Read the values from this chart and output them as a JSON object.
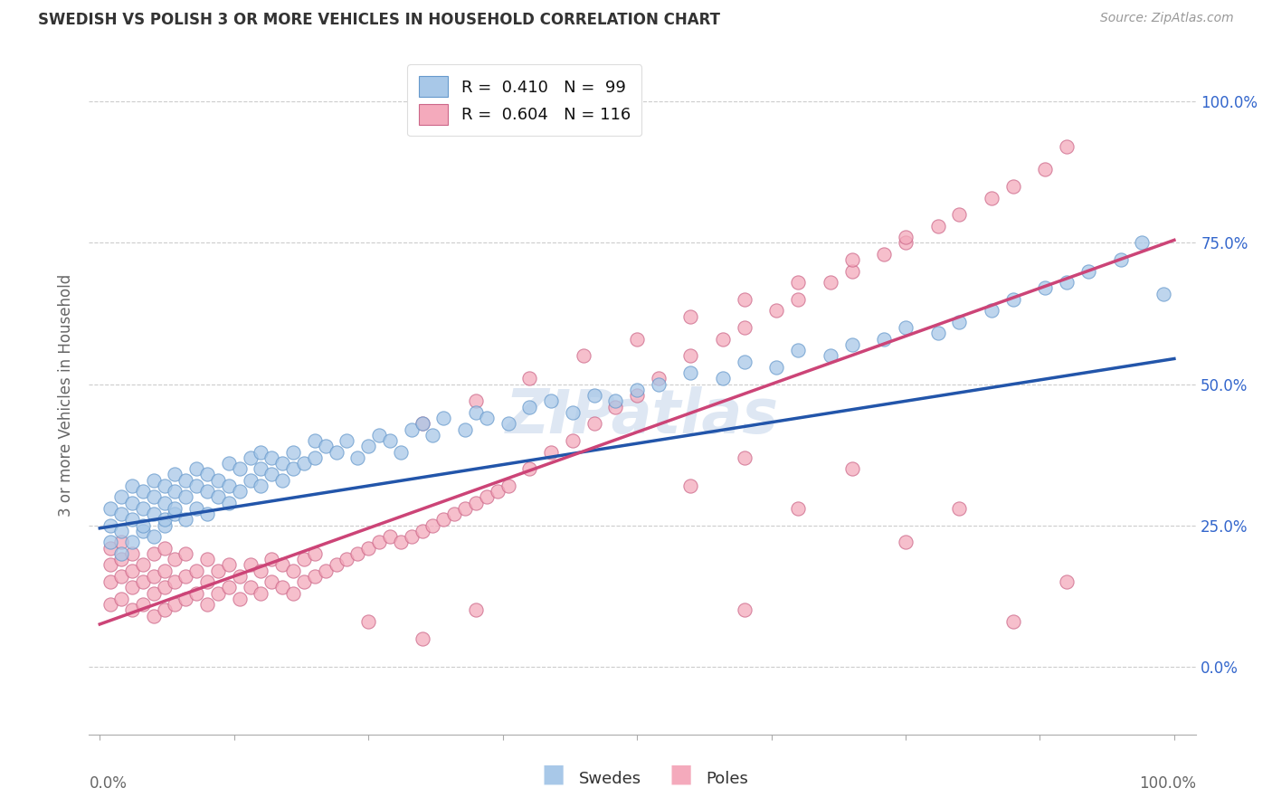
{
  "title": "SWEDISH VS POLISH 3 OR MORE VEHICLES IN HOUSEHOLD CORRELATION CHART",
  "source": "Source: ZipAtlas.com",
  "ylabel": "3 or more Vehicles in Household",
  "ytick_labels": [
    "0.0%",
    "25.0%",
    "50.0%",
    "75.0%",
    "100.0%"
  ],
  "ytick_values": [
    0.0,
    0.25,
    0.5,
    0.75,
    1.0
  ],
  "xtick_labels": [
    "0.0%",
    "100.0%"
  ],
  "xtick_values": [
    0.0,
    1.0
  ],
  "xlim": [
    -0.01,
    1.02
  ],
  "ylim": [
    -0.12,
    1.08
  ],
  "swedes_color": "#a8c8e8",
  "poles_color": "#f4aabc",
  "swedes_edge": "#6699cc",
  "poles_edge": "#cc6688",
  "trend_blue": "#2255aa",
  "trend_pink": "#cc4477",
  "R_swedes": 0.41,
  "N_swedes": 99,
  "R_poles": 0.604,
  "N_poles": 116,
  "watermark": "ZIPatlas",
  "legend_swedes": "Swedes",
  "legend_poles": "Poles",
  "blue_trend_x0": 0.0,
  "blue_trend_y0": 0.245,
  "blue_trend_x1": 1.0,
  "blue_trend_y1": 0.545,
  "pink_trend_x0": 0.0,
  "pink_trend_y0": 0.075,
  "pink_trend_x1": 1.0,
  "pink_trend_y1": 0.755,
  "swedes_x": [
    0.01,
    0.01,
    0.01,
    0.02,
    0.02,
    0.02,
    0.02,
    0.03,
    0.03,
    0.03,
    0.03,
    0.04,
    0.04,
    0.04,
    0.04,
    0.05,
    0.05,
    0.05,
    0.05,
    0.06,
    0.06,
    0.06,
    0.06,
    0.07,
    0.07,
    0.07,
    0.07,
    0.08,
    0.08,
    0.08,
    0.09,
    0.09,
    0.09,
    0.1,
    0.1,
    0.1,
    0.11,
    0.11,
    0.12,
    0.12,
    0.12,
    0.13,
    0.13,
    0.14,
    0.14,
    0.15,
    0.15,
    0.15,
    0.16,
    0.16,
    0.17,
    0.17,
    0.18,
    0.18,
    0.19,
    0.2,
    0.2,
    0.21,
    0.22,
    0.23,
    0.24,
    0.25,
    0.26,
    0.27,
    0.28,
    0.29,
    0.3,
    0.31,
    0.32,
    0.34,
    0.35,
    0.36,
    0.38,
    0.4,
    0.42,
    0.44,
    0.46,
    0.48,
    0.5,
    0.52,
    0.55,
    0.58,
    0.6,
    0.63,
    0.65,
    0.68,
    0.7,
    0.73,
    0.75,
    0.78,
    0.8,
    0.83,
    0.85,
    0.88,
    0.9,
    0.92,
    0.95,
    0.97,
    0.99
  ],
  "swedes_y": [
    0.22,
    0.25,
    0.28,
    0.2,
    0.24,
    0.27,
    0.3,
    0.22,
    0.26,
    0.29,
    0.32,
    0.24,
    0.28,
    0.31,
    0.25,
    0.23,
    0.27,
    0.3,
    0.33,
    0.25,
    0.29,
    0.32,
    0.26,
    0.27,
    0.31,
    0.34,
    0.28,
    0.26,
    0.3,
    0.33,
    0.28,
    0.32,
    0.35,
    0.27,
    0.31,
    0.34,
    0.3,
    0.33,
    0.29,
    0.32,
    0.36,
    0.31,
    0.35,
    0.33,
    0.37,
    0.32,
    0.35,
    0.38,
    0.34,
    0.37,
    0.33,
    0.36,
    0.35,
    0.38,
    0.36,
    0.37,
    0.4,
    0.39,
    0.38,
    0.4,
    0.37,
    0.39,
    0.41,
    0.4,
    0.38,
    0.42,
    0.43,
    0.41,
    0.44,
    0.42,
    0.45,
    0.44,
    0.43,
    0.46,
    0.47,
    0.45,
    0.48,
    0.47,
    0.49,
    0.5,
    0.52,
    0.51,
    0.54,
    0.53,
    0.56,
    0.55,
    0.57,
    0.58,
    0.6,
    0.59,
    0.61,
    0.63,
    0.65,
    0.67,
    0.68,
    0.7,
    0.72,
    0.75,
    0.66
  ],
  "poles_x": [
    0.01,
    0.01,
    0.01,
    0.01,
    0.02,
    0.02,
    0.02,
    0.02,
    0.03,
    0.03,
    0.03,
    0.03,
    0.04,
    0.04,
    0.04,
    0.05,
    0.05,
    0.05,
    0.05,
    0.06,
    0.06,
    0.06,
    0.06,
    0.07,
    0.07,
    0.07,
    0.08,
    0.08,
    0.08,
    0.09,
    0.09,
    0.1,
    0.1,
    0.1,
    0.11,
    0.11,
    0.12,
    0.12,
    0.13,
    0.13,
    0.14,
    0.14,
    0.15,
    0.15,
    0.16,
    0.16,
    0.17,
    0.17,
    0.18,
    0.18,
    0.19,
    0.19,
    0.2,
    0.2,
    0.21,
    0.22,
    0.23,
    0.24,
    0.25,
    0.26,
    0.27,
    0.28,
    0.29,
    0.3,
    0.31,
    0.32,
    0.33,
    0.34,
    0.35,
    0.36,
    0.37,
    0.38,
    0.4,
    0.42,
    0.44,
    0.46,
    0.48,
    0.5,
    0.52,
    0.55,
    0.58,
    0.6,
    0.63,
    0.65,
    0.68,
    0.7,
    0.73,
    0.75,
    0.78,
    0.8,
    0.83,
    0.85,
    0.88,
    0.9,
    0.3,
    0.35,
    0.4,
    0.45,
    0.5,
    0.55,
    0.6,
    0.65,
    0.7,
    0.75,
    0.55,
    0.6,
    0.65,
    0.7,
    0.75,
    0.8,
    0.85,
    0.9,
    0.25,
    0.3,
    0.35,
    0.6
  ],
  "poles_y": [
    0.15,
    0.18,
    0.21,
    0.11,
    0.12,
    0.16,
    0.19,
    0.22,
    0.1,
    0.14,
    0.17,
    0.2,
    0.11,
    0.15,
    0.18,
    0.09,
    0.13,
    0.16,
    0.2,
    0.1,
    0.14,
    0.17,
    0.21,
    0.11,
    0.15,
    0.19,
    0.12,
    0.16,
    0.2,
    0.13,
    0.17,
    0.11,
    0.15,
    0.19,
    0.13,
    0.17,
    0.14,
    0.18,
    0.12,
    0.16,
    0.14,
    0.18,
    0.13,
    0.17,
    0.15,
    0.19,
    0.14,
    0.18,
    0.13,
    0.17,
    0.15,
    0.19,
    0.16,
    0.2,
    0.17,
    0.18,
    0.19,
    0.2,
    0.21,
    0.22,
    0.23,
    0.22,
    0.23,
    0.24,
    0.25,
    0.26,
    0.27,
    0.28,
    0.29,
    0.3,
    0.31,
    0.32,
    0.35,
    0.38,
    0.4,
    0.43,
    0.46,
    0.48,
    0.51,
    0.55,
    0.58,
    0.6,
    0.63,
    0.65,
    0.68,
    0.7,
    0.73,
    0.75,
    0.78,
    0.8,
    0.83,
    0.85,
    0.88,
    0.92,
    0.43,
    0.47,
    0.51,
    0.55,
    0.58,
    0.62,
    0.65,
    0.68,
    0.72,
    0.76,
    0.32,
    0.37,
    0.28,
    0.35,
    0.22,
    0.28,
    0.08,
    0.15,
    0.08,
    0.05,
    0.1,
    0.1
  ]
}
